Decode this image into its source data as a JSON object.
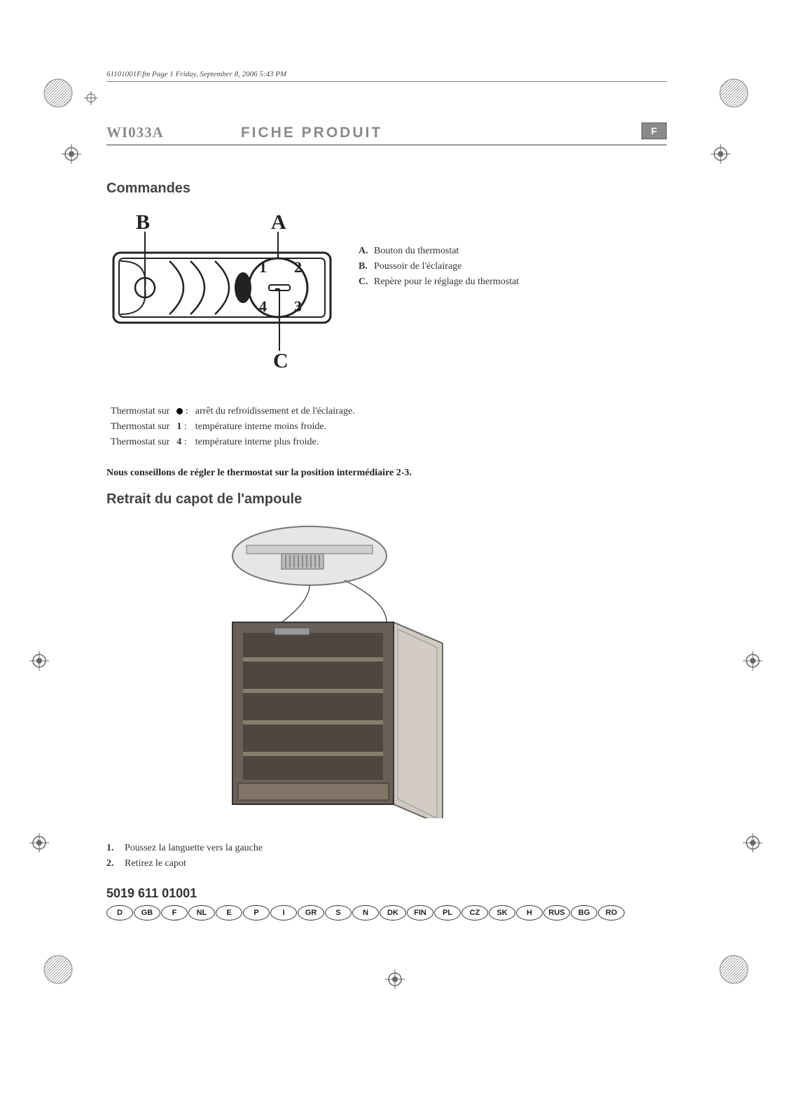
{
  "filepath": "61101001F.fm  Page 1  Friday, September 8, 2006  5:43 PM",
  "model": "WI033A",
  "doc_title": "FICHE PRODUIT",
  "lang_tab": "F",
  "section_commands": "Commandes",
  "diagram": {
    "labels": {
      "A": "A",
      "B": "B",
      "C": "C"
    },
    "dial_numbers": [
      "1",
      "2",
      "3",
      "4"
    ],
    "dial_center": "-"
  },
  "legend": [
    {
      "key": "A.",
      "text": "Bouton du thermostat"
    },
    {
      "key": "B.",
      "text": "Poussoir de l'éclairage"
    },
    {
      "key": "C.",
      "text": "Repère pour le réglage du thermostat"
    }
  ],
  "thermostat_rows": [
    {
      "prefix": "Thermostat sur",
      "mark": "dot",
      "desc": "arrêt du refroidissement et de l'éclairage."
    },
    {
      "prefix": "Thermostat sur",
      "mark": "1",
      "desc": "température interne moins froide."
    },
    {
      "prefix": "Thermostat sur",
      "mark": "4",
      "desc": "température interne plus froide."
    }
  ],
  "advice": "Nous conseillons de régler le thermostat sur la position intermédiaire 2-3.",
  "section_bulb": "Retrait du capot de l'ampoule",
  "steps": [
    {
      "num": "1.",
      "text": "Poussez la languette vers la gauche"
    },
    {
      "num": "2.",
      "text": "Retirez le capot"
    }
  ],
  "part_number": "5019 611 01001",
  "languages": [
    "D",
    "GB",
    "F",
    "NL",
    "E",
    "P",
    "I",
    "GR",
    "S",
    "N",
    "DK",
    "FIN",
    "PL",
    "CZ",
    "SK",
    "H",
    "RUS",
    "BG",
    "RO"
  ],
  "colors": {
    "grey_text": "#8a8a8a",
    "rule": "#9a9a9a",
    "body_text": "#333333"
  }
}
